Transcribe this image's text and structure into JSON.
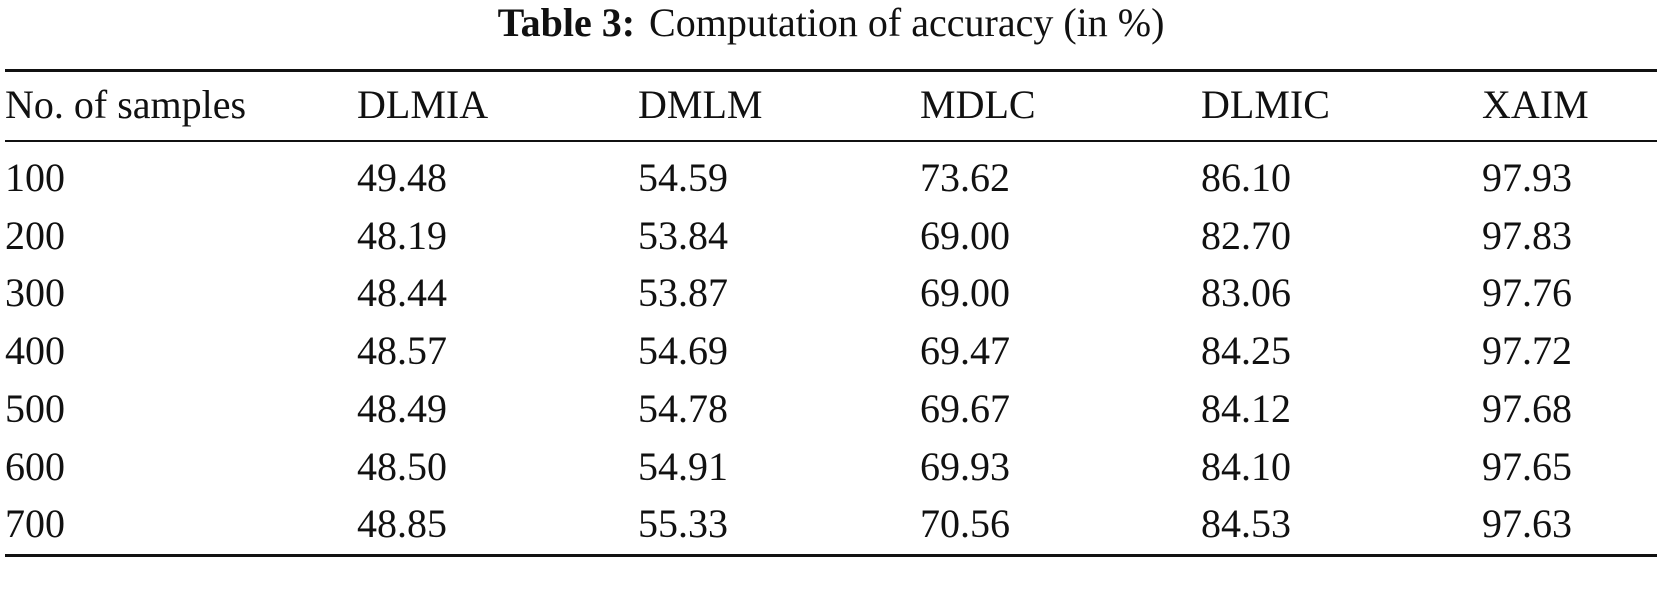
{
  "title": {
    "label": "Table 3:",
    "text": "Computation of accuracy (in %)"
  },
  "table": {
    "header": [
      "No. of samples",
      "DLMIA",
      "DMLM",
      "MDLC",
      "DLMIC",
      "XAIM"
    ],
    "rows": [
      [
        "100",
        "49.48",
        "54.59",
        "73.62",
        "86.10",
        "97.93"
      ],
      [
        "200",
        "48.19",
        "53.84",
        "69.00",
        "82.70",
        "97.83"
      ],
      [
        "300",
        "48.44",
        "53.87",
        "69.00",
        "83.06",
        "97.76"
      ],
      [
        "400",
        "48.57",
        "54.69",
        "69.47",
        "84.25",
        "97.72"
      ],
      [
        "500",
        "48.49",
        "54.78",
        "69.67",
        "84.12",
        "97.68"
      ],
      [
        "600",
        "48.50",
        "54.91",
        "69.93",
        "84.10",
        "97.65"
      ],
      [
        "700",
        "48.85",
        "55.33",
        "70.56",
        "84.53",
        "97.63"
      ]
    ]
  }
}
